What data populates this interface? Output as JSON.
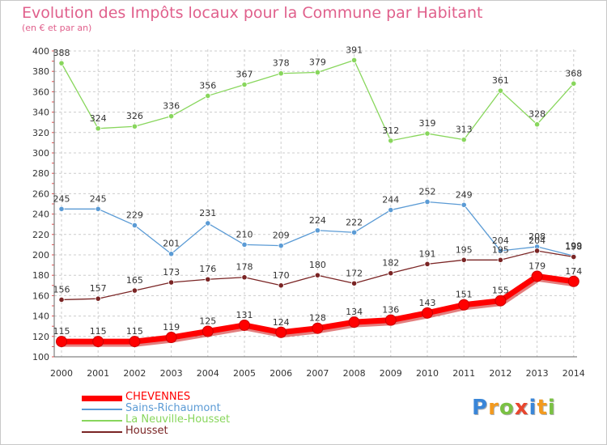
{
  "title": "Evolution des Impôts locaux pour la Commune par Habitant",
  "subtitle": "(en € et par an)",
  "logo_letters": [
    "P",
    "r",
    "o",
    "x",
    "i",
    "t",
    "i"
  ],
  "logo_colors": [
    "#3a86d8",
    "#f39a1e",
    "#7ac143",
    "#e8462e",
    "#3a86d8",
    "#f39a1e",
    "#7ac143"
  ],
  "chart_data": {
    "type": "line",
    "x": [
      "2000",
      "2001",
      "2002",
      "2003",
      "2004",
      "2005",
      "2006",
      "2007",
      "2008",
      "2009",
      "2010",
      "2011",
      "2012",
      "2013",
      "2014"
    ],
    "ylim": [
      100,
      400
    ],
    "yticks": [
      "100",
      "120",
      "140",
      "160",
      "180",
      "200",
      "220",
      "240",
      "260",
      "280",
      "300",
      "320",
      "340",
      "360",
      "380",
      "400"
    ],
    "grid": true,
    "legend": "bottom-left",
    "series": [
      {
        "name": "La Neuville-Housset",
        "color": "#88d65c",
        "values": [
          388,
          324,
          326,
          336,
          356,
          367,
          378,
          379,
          391,
          312,
          319,
          313,
          361,
          328,
          368
        ],
        "labels": [
          "388",
          "324",
          "326",
          "336",
          "356",
          "367",
          "378",
          "379",
          "391",
          "312",
          "319",
          "313",
          "361",
          "328",
          "368"
        ]
      },
      {
        "name": "Sains-Richaumont",
        "color": "#5b9bd5",
        "values": [
          245,
          245,
          229,
          201,
          231,
          210,
          209,
          224,
          222,
          244,
          252,
          249,
          204,
          208,
          199
        ],
        "labels": [
          "245",
          "245",
          "229",
          "201",
          "231",
          "210",
          "209",
          "224",
          "222",
          "244",
          "252",
          "249",
          "204",
          "208",
          "199"
        ]
      },
      {
        "name": "Housset",
        "color": "#7a2424",
        "values": [
          156,
          157,
          165,
          173,
          176,
          178,
          170,
          180,
          172,
          182,
          191,
          195,
          195,
          204,
          198
        ],
        "labels": [
          "156",
          "157",
          "165",
          "173",
          "176",
          "178",
          "170",
          "180",
          "172",
          "182",
          "191",
          "195",
          "195",
          "204",
          "198"
        ]
      },
      {
        "name": "CHEVENNES",
        "color": "#ff0000",
        "values": [
          115,
          115,
          115,
          119,
          125,
          131,
          124,
          128,
          134,
          136,
          143,
          151,
          155,
          179,
          174
        ],
        "labels": [
          "115",
          "115",
          "115",
          "119",
          "125",
          "131",
          "124",
          "128",
          "134",
          "136",
          "143",
          "151",
          "155",
          "179",
          "174"
        ]
      }
    ]
  },
  "legend_order": [
    "CHEVENNES",
    "Sains-Richaumont",
    "La Neuville-Housset",
    "Housset"
  ]
}
